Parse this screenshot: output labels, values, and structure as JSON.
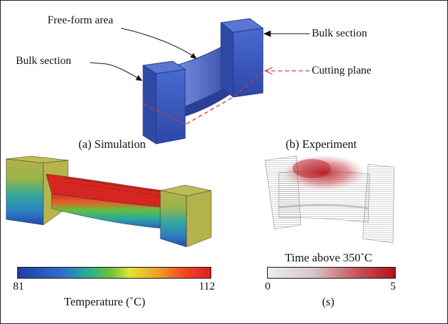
{
  "top_diagram": {
    "label_free_form": "Free-form area",
    "label_bulk_left": "Bulk section",
    "label_bulk_right": "Bulk section",
    "label_cutting_plane": "Cutting plane"
  },
  "captions": {
    "simulation": "(a) Simulation",
    "experiment": "(b) Experiment"
  },
  "simulation_colorbar": {
    "min": "81",
    "max": "112",
    "title": "Temperature (˚C)"
  },
  "experiment_colorbar": {
    "title": "Time above 350˚C",
    "min": "0",
    "max": "5",
    "unit": "(s)"
  },
  "colors": {
    "part_blue": "#3f5fc4",
    "cut_line": "#d8383e",
    "bulk_yellow": "#b8b648",
    "heat_red": "#c81e1e"
  }
}
